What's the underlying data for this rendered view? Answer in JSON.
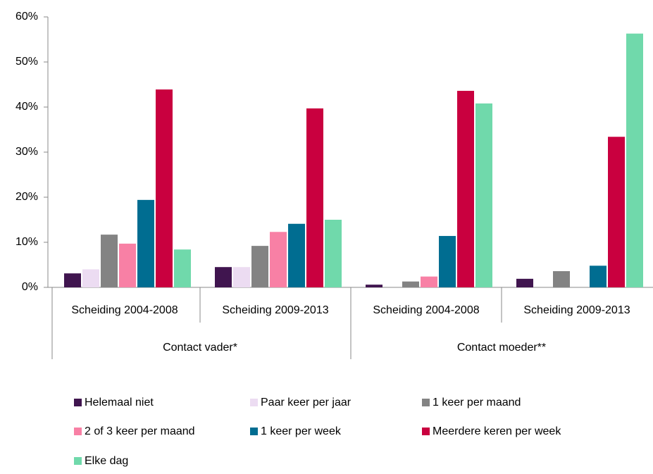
{
  "chart_data": {
    "type": "bar",
    "categories": [
      "Scheiding 2004-2008",
      "Scheiding 2009-2013",
      "Scheiding 2004-2008",
      "Scheiding 2009-2013"
    ],
    "category_groups": [
      "Contact vader*",
      "Contact moeder**"
    ],
    "series": [
      {
        "name": "Helemaal niet",
        "color": "#40154f",
        "values": [
          3.1,
          4.5,
          0.6,
          1.9
        ]
      },
      {
        "name": "Paar keer per jaar",
        "color": "#ecdcf2",
        "values": [
          4.0,
          4.5,
          0,
          0
        ]
      },
      {
        "name": "1 keer per maand",
        "color": "#838383",
        "values": [
          11.7,
          9.2,
          1.3,
          3.6
        ]
      },
      {
        "name": "2 of 3 keer per maand",
        "color": "#f880a5",
        "values": [
          9.7,
          12.3,
          2.4,
          0
        ]
      },
      {
        "name": "1 keer per week",
        "color": "#006d91",
        "values": [
          19.4,
          14.1,
          11.4,
          4.8
        ]
      },
      {
        "name": "Meerdere keren per week",
        "color": "#c9003f",
        "values": [
          43.9,
          39.7,
          43.6,
          33.4
        ]
      },
      {
        "name": "Elke dag",
        "color": "#70d9ab",
        "values": [
          8.4,
          15.0,
          40.8,
          56.3
        ]
      }
    ],
    "ylim": [
      0,
      60
    ],
    "yticks": [
      {
        "value": 0,
        "label": "0%"
      },
      {
        "value": 10,
        "label": "10%"
      },
      {
        "value": 20,
        "label": "20%"
      },
      {
        "value": 30,
        "label": "30%"
      },
      {
        "value": 40,
        "label": "40%"
      },
      {
        "value": 50,
        "label": "50%"
      },
      {
        "value": 60,
        "label": "60%"
      }
    ],
    "grid": false
  }
}
